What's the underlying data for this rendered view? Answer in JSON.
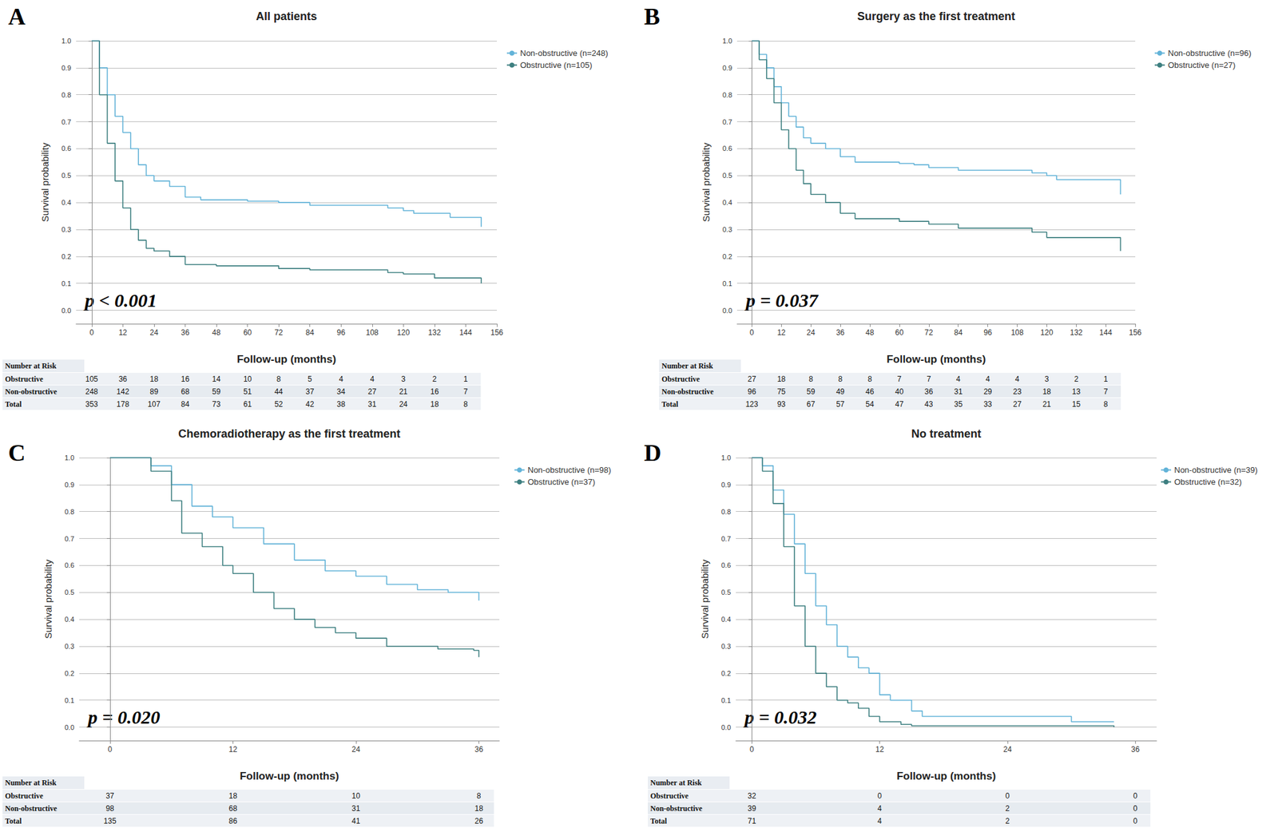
{
  "chart_data": [
    {
      "type": "line",
      "panel": "A",
      "title": "All patients",
      "x_label": "Follow-up (months)",
      "y_label": "Survival probability",
      "annotation": "p < 0.001",
      "xlim": [
        -6,
        156
      ],
      "xticks": [
        0,
        12,
        24,
        36,
        48,
        60,
        72,
        84,
        96,
        108,
        120,
        132,
        144,
        156
      ],
      "ylim": [
        -0.05,
        1.0
      ],
      "yticks": [
        {
          "value": 0,
          "label": "0.0"
        },
        {
          "value": 0.1,
          "label": "0.1"
        },
        {
          "value": 0.2,
          "label": "0.2"
        },
        {
          "value": 0.3,
          "label": "0.3"
        },
        {
          "value": 0.4,
          "label": "0.4"
        },
        {
          "value": 0.5,
          "label": "0.5"
        },
        {
          "value": 0.6,
          "label": "0.6"
        },
        {
          "value": 0.7,
          "label": "0.7"
        },
        {
          "value": 0.8,
          "label": "0.8"
        },
        {
          "value": 0.9,
          "label": "0.9"
        },
        {
          "value": 1.0,
          "label": "1.0"
        }
      ],
      "grid": true,
      "legend": "right",
      "series": [
        {
          "name": "Non-obstructive (n=248)",
          "color": "#62b3d8",
          "line_style": "step",
          "x": [
            0,
            3,
            6,
            9,
            12,
            15,
            18,
            21,
            24,
            30,
            36,
            42,
            60,
            72,
            84,
            108,
            114,
            120,
            124,
            138,
            149,
            150
          ],
          "values": [
            1.0,
            0.9,
            0.8,
            0.72,
            0.66,
            0.6,
            0.54,
            0.5,
            0.48,
            0.46,
            0.42,
            0.41,
            0.405,
            0.4,
            0.39,
            0.39,
            0.38,
            0.37,
            0.36,
            0.345,
            0.345,
            0.31
          ]
        },
        {
          "name": "Obstructive (n=105)",
          "color": "#3d7f80",
          "line_style": "step",
          "x": [
            0,
            3,
            6,
            9,
            12,
            15,
            18,
            21,
            24,
            30,
            36,
            48,
            72,
            84,
            108,
            114,
            120,
            132,
            149,
            150
          ],
          "values": [
            1.0,
            0.8,
            0.62,
            0.48,
            0.38,
            0.3,
            0.26,
            0.23,
            0.22,
            0.2,
            0.17,
            0.165,
            0.155,
            0.15,
            0.15,
            0.14,
            0.135,
            0.12,
            0.12,
            0.1
          ]
        }
      ],
      "risk_table": {
        "title": "Number at Risk",
        "times": [
          0,
          12,
          24,
          36,
          48,
          60,
          72,
          84,
          96,
          108,
          120,
          132,
          144
        ],
        "rows": [
          {
            "name": "Obstructive",
            "values": [
              105,
              36,
              18,
              16,
              14,
              10,
              8,
              5,
              4,
              4,
              3,
              2,
              1
            ]
          },
          {
            "name": "Non-obstructive",
            "values": [
              248,
              142,
              89,
              68,
              59,
              51,
              44,
              37,
              34,
              27,
              21,
              16,
              7
            ]
          },
          {
            "name": "Total",
            "values": [
              353,
              178,
              107,
              84,
              73,
              61,
              52,
              42,
              38,
              31,
              24,
              18,
              8
            ]
          }
        ]
      }
    },
    {
      "type": "line",
      "panel": "B",
      "title": "Surgery as the first treatment",
      "x_label": "Follow-up (months)",
      "y_label": "Survival probability",
      "annotation": "p = 0.037",
      "xlim": [
        -6,
        156
      ],
      "xticks": [
        0,
        12,
        24,
        36,
        48,
        60,
        72,
        84,
        96,
        108,
        120,
        132,
        144,
        156
      ],
      "ylim": [
        -0.05,
        1.0
      ],
      "yticks": [
        {
          "value": 0,
          "label": "0.0"
        },
        {
          "value": 0.1,
          "label": "0.1"
        },
        {
          "value": 0.2,
          "label": "0.2"
        },
        {
          "value": 0.3,
          "label": "0.3"
        },
        {
          "value": 0.4,
          "label": "0.4"
        },
        {
          "value": 0.5,
          "label": "0.5"
        },
        {
          "value": 0.6,
          "label": "0.6"
        },
        {
          "value": 0.7,
          "label": "0.7"
        },
        {
          "value": 0.8,
          "label": "0.8"
        },
        {
          "value": 0.9,
          "label": "0.9"
        },
        {
          "value": 1.0,
          "label": "1.0"
        }
      ],
      "grid": true,
      "legend": "right",
      "series": [
        {
          "name": "Non-obstructive (n=96)",
          "color": "#62b3d8",
          "line_style": "step",
          "x": [
            0,
            3,
            6,
            9,
            12,
            15,
            18,
            21,
            24,
            30,
            36,
            42,
            60,
            66,
            72,
            84,
            108,
            114,
            120,
            124,
            149,
            150
          ],
          "values": [
            1.0,
            0.95,
            0.9,
            0.83,
            0.77,
            0.72,
            0.68,
            0.64,
            0.62,
            0.6,
            0.57,
            0.55,
            0.545,
            0.54,
            0.53,
            0.52,
            0.52,
            0.51,
            0.5,
            0.485,
            0.485,
            0.43
          ]
        },
        {
          "name": "Obstructive (n=27)",
          "color": "#3d7f80",
          "line_style": "step",
          "x": [
            0,
            3,
            6,
            9,
            12,
            15,
            18,
            21,
            24,
            30,
            36,
            42,
            60,
            72,
            84,
            108,
            114,
            120,
            149,
            150
          ],
          "values": [
            1.0,
            0.93,
            0.86,
            0.77,
            0.67,
            0.6,
            0.52,
            0.47,
            0.43,
            0.4,
            0.36,
            0.34,
            0.33,
            0.32,
            0.305,
            0.305,
            0.29,
            0.27,
            0.27,
            0.22
          ]
        }
      ],
      "risk_table": {
        "title": "Number at Risk",
        "times": [
          0,
          12,
          24,
          36,
          48,
          60,
          72,
          84,
          96,
          108,
          120,
          132,
          144
        ],
        "rows": [
          {
            "name": "Obstructive",
            "values": [
              27,
              18,
              8,
              8,
              8,
              7,
              7,
              4,
              4,
              4,
              3,
              2,
              1
            ]
          },
          {
            "name": "Non-obstructive",
            "values": [
              96,
              75,
              59,
              49,
              46,
              40,
              36,
              31,
              29,
              23,
              18,
              13,
              7
            ]
          },
          {
            "name": "Total",
            "values": [
              123,
              93,
              67,
              57,
              54,
              47,
              43,
              35,
              33,
              27,
              21,
              15,
              8
            ]
          }
        ]
      }
    },
    {
      "type": "line",
      "panel": "C",
      "title": "Chemoradiotherapy as the first treatment",
      "x_label": "Follow-up (months)",
      "y_label": "Survival probability",
      "annotation": "p = 0.020",
      "xlim": [
        -3,
        38
      ],
      "xticks": [
        0,
        12,
        24,
        36
      ],
      "ylim": [
        -0.05,
        1.0
      ],
      "yticks": [
        {
          "value": 0,
          "label": "0.0"
        },
        {
          "value": 0.1,
          "label": "0.1"
        },
        {
          "value": 0.2,
          "label": "0.2"
        },
        {
          "value": 0.3,
          "label": "0.3"
        },
        {
          "value": 0.4,
          "label": "0.4"
        },
        {
          "value": 0.5,
          "label": "0.5"
        },
        {
          "value": 0.6,
          "label": "0.6"
        },
        {
          "value": 0.7,
          "label": "0.7"
        },
        {
          "value": 0.8,
          "label": "0.8"
        },
        {
          "value": 0.9,
          "label": "0.9"
        },
        {
          "value": 1.0,
          "label": "1.0"
        }
      ],
      "grid": true,
      "legend": "right",
      "series": [
        {
          "name": "Non-obstructive (n=98)",
          "color": "#62b3d8",
          "line_style": "step",
          "x": [
            0,
            3,
            4,
            6,
            8,
            10,
            12,
            15,
            18,
            21,
            24,
            27,
            30,
            33,
            35.5,
            36
          ],
          "values": [
            1.0,
            1.0,
            0.97,
            0.9,
            0.82,
            0.78,
            0.74,
            0.68,
            0.62,
            0.58,
            0.56,
            0.53,
            0.51,
            0.5,
            0.5,
            0.47
          ]
        },
        {
          "name": "Obstructive (n=37)",
          "color": "#3d7f80",
          "line_style": "step",
          "x": [
            0,
            3,
            4,
            6,
            7,
            9,
            11,
            12,
            14,
            16,
            18,
            20,
            22,
            24,
            27,
            30,
            32,
            35.5,
            36
          ],
          "values": [
            1.0,
            1.0,
            0.95,
            0.84,
            0.72,
            0.67,
            0.6,
            0.57,
            0.5,
            0.44,
            0.4,
            0.37,
            0.35,
            0.33,
            0.3,
            0.3,
            0.29,
            0.285,
            0.26
          ]
        }
      ],
      "risk_table": {
        "title": "Number at Risk",
        "times": [
          0,
          12,
          24,
          36
        ],
        "rows": [
          {
            "name": "Obstructive",
            "values": [
              37,
              18,
              10,
              8
            ]
          },
          {
            "name": "Non-obstructive",
            "values": [
              98,
              68,
              31,
              18
            ]
          },
          {
            "name": "Total",
            "values": [
              135,
              86,
              41,
              26
            ]
          }
        ]
      }
    },
    {
      "type": "line",
      "panel": "D",
      "title": "No treatment",
      "x_label": "Follow-up (months)",
      "y_label": "Survival probability",
      "annotation": "p = 0.032",
      "xlim": [
        -1.5,
        38
      ],
      "xticks": [
        0,
        12,
        24,
        36
      ],
      "ylim": [
        -0.05,
        1.0
      ],
      "yticks": [
        {
          "value": 0,
          "label": "0.0"
        },
        {
          "value": 0.1,
          "label": "0.1"
        },
        {
          "value": 0.2,
          "label": "0.2"
        },
        {
          "value": 0.3,
          "label": "0.3"
        },
        {
          "value": 0.4,
          "label": "0.4"
        },
        {
          "value": 0.5,
          "label": "0.5"
        },
        {
          "value": 0.6,
          "label": "0.6"
        },
        {
          "value": 0.7,
          "label": "0.7"
        },
        {
          "value": 0.8,
          "label": "0.8"
        },
        {
          "value": 0.9,
          "label": "0.9"
        },
        {
          "value": 1.0,
          "label": "1.0"
        }
      ],
      "grid": true,
      "legend": "right",
      "series": [
        {
          "name": "Non-obstructive (n=39)",
          "color": "#62b3d8",
          "line_style": "step",
          "x": [
            0,
            1,
            2,
            3,
            4,
            5,
            6,
            7,
            8,
            9,
            10,
            11,
            12,
            13,
            15,
            16,
            30,
            34
          ],
          "values": [
            1.0,
            0.97,
            0.88,
            0.79,
            0.68,
            0.57,
            0.45,
            0.38,
            0.3,
            0.26,
            0.22,
            0.2,
            0.12,
            0.1,
            0.06,
            0.04,
            0.02,
            0.02
          ]
        },
        {
          "name": "Obstructive (n=32)",
          "color": "#3d7f80",
          "line_style": "step",
          "x": [
            0,
            1,
            2,
            3,
            4,
            5,
            6,
            7,
            8,
            9,
            10,
            11,
            12,
            14,
            15,
            34
          ],
          "values": [
            1.0,
            0.95,
            0.83,
            0.67,
            0.45,
            0.3,
            0.2,
            0.15,
            0.1,
            0.09,
            0.07,
            0.04,
            0.02,
            0.01,
            0.005,
            0.0
          ]
        }
      ],
      "risk_table": {
        "title": "Number at Risk",
        "times": [
          0,
          12,
          24,
          36
        ],
        "rows": [
          {
            "name": "Obstructive",
            "values": [
              32,
              0,
              0,
              0
            ]
          },
          {
            "name": "Non-obstructive",
            "values": [
              39,
              4,
              2,
              0
            ]
          },
          {
            "name": "Total",
            "values": [
              71,
              4,
              2,
              0
            ]
          }
        ]
      }
    }
  ]
}
